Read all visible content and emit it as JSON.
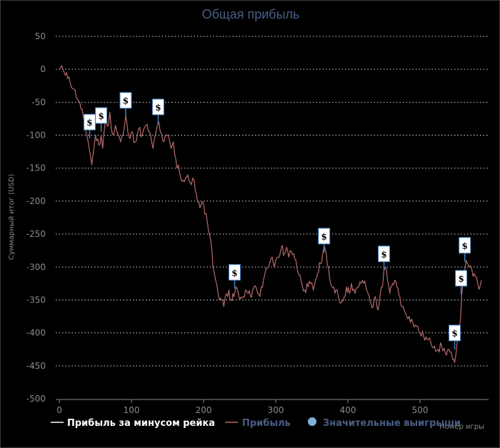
{
  "colors": {
    "background": "#000000",
    "grid": "#ffffff",
    "axis": "#8a8a8a",
    "title": "#4a5e86",
    "profit_line": "#b86a6a",
    "rake_line": "#ffffff",
    "win_marker": "#7fb0e0",
    "flag_border": "#3f7fc2"
  },
  "chart_data": {
    "type": "line",
    "title": "Общая прибыль",
    "xlabel": "Номер игры",
    "ylabel": "Суммарный итог (USD)",
    "xlim": [
      -5,
      595
    ],
    "ylim": [
      -500,
      50
    ],
    "x_ticks": [
      0,
      100,
      200,
      300,
      400,
      500
    ],
    "y_ticks": [
      50,
      0,
      -50,
      -100,
      -150,
      -200,
      -250,
      -300,
      -350,
      -400,
      -450,
      -500
    ],
    "grid": "horizontal dotted",
    "legend_position": "bottom",
    "legend": [
      {
        "label": "Прибыль за минусом рейка",
        "color": "#ffffff",
        "kind": "line"
      },
      {
        "label": "Прибыль",
        "color": "#b86a6a",
        "kind": "line"
      },
      {
        "label": "Значительные выигрыши",
        "color": "#7fb0e0",
        "kind": "marker"
      }
    ],
    "series": [
      {
        "name": "Прибыль",
        "anchors": [
          [
            0,
            0
          ],
          [
            5,
            0
          ],
          [
            10,
            -5
          ],
          [
            15,
            -20
          ],
          [
            20,
            -30
          ],
          [
            25,
            -45
          ],
          [
            30,
            -60
          ],
          [
            35,
            -80
          ],
          [
            40,
            -110
          ],
          [
            43,
            -130
          ],
          [
            45,
            -145
          ],
          [
            48,
            -120
          ],
          [
            50,
            -100
          ],
          [
            55,
            -115
          ],
          [
            58,
            -100
          ],
          [
            60,
            -120
          ],
          [
            62,
            -95
          ],
          [
            65,
            -75
          ],
          [
            68,
            -85
          ],
          [
            70,
            -65
          ],
          [
            72,
            -90
          ],
          [
            75,
            -100
          ],
          [
            78,
            -85
          ],
          [
            80,
            -95
          ],
          [
            85,
            -110
          ],
          [
            88,
            -100
          ],
          [
            90,
            -90
          ],
          [
            92,
            -70
          ],
          [
            95,
            -95
          ],
          [
            98,
            -105
          ],
          [
            100,
            -95
          ],
          [
            105,
            -110
          ],
          [
            110,
            -90
          ],
          [
            115,
            -100
          ],
          [
            120,
            -85
          ],
          [
            125,
            -95
          ],
          [
            128,
            -110
          ],
          [
            130,
            -120
          ],
          [
            133,
            -100
          ],
          [
            135,
            -90
          ],
          [
            138,
            -80
          ],
          [
            140,
            -95
          ],
          [
            145,
            -110
          ],
          [
            150,
            -100
          ],
          [
            155,
            -120
          ],
          [
            158,
            -110
          ],
          [
            160,
            -130
          ],
          [
            163,
            -150
          ],
          [
            165,
            -145
          ],
          [
            170,
            -170
          ],
          [
            175,
            -165
          ],
          [
            178,
            -160
          ],
          [
            180,
            -170
          ],
          [
            183,
            -175
          ],
          [
            185,
            -165
          ],
          [
            190,
            -190
          ],
          [
            195,
            -210
          ],
          [
            200,
            -205
          ],
          [
            205,
            -230
          ],
          [
            210,
            -260
          ],
          [
            213,
            -300
          ],
          [
            215,
            -310
          ],
          [
            218,
            -325
          ],
          [
            220,
            -340
          ],
          [
            225,
            -350
          ],
          [
            228,
            -360
          ],
          [
            230,
            -345
          ],
          [
            235,
            -335
          ],
          [
            238,
            -350
          ],
          [
            242,
            -345
          ],
          [
            245,
            -330
          ],
          [
            248,
            -340
          ],
          [
            250,
            -350
          ],
          [
            255,
            -345
          ],
          [
            258,
            -335
          ],
          [
            262,
            -340
          ],
          [
            265,
            -345
          ],
          [
            268,
            -335
          ],
          [
            270,
            -330
          ],
          [
            275,
            -340
          ],
          [
            278,
            -345
          ],
          [
            280,
            -330
          ],
          [
            283,
            -320
          ],
          [
            285,
            -310
          ],
          [
            290,
            -300
          ],
          [
            295,
            -285
          ],
          [
            298,
            -300
          ],
          [
            300,
            -290
          ],
          [
            305,
            -285
          ],
          [
            308,
            -270
          ],
          [
            312,
            -280
          ],
          [
            315,
            -270
          ],
          [
            318,
            -285
          ],
          [
            320,
            -275
          ],
          [
            325,
            -280
          ],
          [
            328,
            -290
          ],
          [
            330,
            -305
          ],
          [
            335,
            -320
          ],
          [
            340,
            -335
          ],
          [
            345,
            -330
          ],
          [
            348,
            -325
          ],
          [
            352,
            -335
          ],
          [
            355,
            -320
          ],
          [
            358,
            -310
          ],
          [
            362,
            -295
          ],
          [
            365,
            -280
          ],
          [
            368,
            -270
          ],
          [
            370,
            -280
          ],
          [
            373,
            -300
          ],
          [
            375,
            -320
          ],
          [
            378,
            -330
          ],
          [
            382,
            -340
          ],
          [
            385,
            -335
          ],
          [
            390,
            -355
          ],
          [
            395,
            -345
          ],
          [
            398,
            -330
          ],
          [
            402,
            -340
          ],
          [
            405,
            -325
          ],
          [
            410,
            -340
          ],
          [
            415,
            -330
          ],
          [
            420,
            -320
          ],
          [
            425,
            -330
          ],
          [
            428,
            -340
          ],
          [
            432,
            -355
          ],
          [
            435,
            -360
          ],
          [
            438,
            -345
          ],
          [
            442,
            -365
          ],
          [
            445,
            -340
          ],
          [
            448,
            -330
          ],
          [
            450,
            -305
          ],
          [
            452,
            -300
          ],
          [
            455,
            -320
          ],
          [
            458,
            -340
          ],
          [
            462,
            -325
          ],
          [
            465,
            -320
          ],
          [
            468,
            -330
          ],
          [
            472,
            -345
          ],
          [
            475,
            -360
          ],
          [
            480,
            -370
          ],
          [
            485,
            -375
          ],
          [
            490,
            -385
          ],
          [
            495,
            -390
          ],
          [
            500,
            -400
          ],
          [
            505,
            -405
          ],
          [
            510,
            -410
          ],
          [
            515,
            -415
          ],
          [
            520,
            -420
          ],
          [
            525,
            -425
          ],
          [
            530,
            -420
          ],
          [
            535,
            -430
          ],
          [
            540,
            -425
          ],
          [
            545,
            -440
          ],
          [
            548,
            -445
          ],
          [
            550,
            -430
          ],
          [
            553,
            -410
          ],
          [
            556,
            -380
          ],
          [
            558,
            -340
          ],
          [
            560,
            -320
          ],
          [
            562,
            -305
          ],
          [
            564,
            -290
          ],
          [
            566,
            -295
          ],
          [
            568,
            -300
          ],
          [
            570,
            -298
          ],
          [
            572,
            -305
          ],
          [
            575,
            -310
          ],
          [
            578,
            -315
          ],
          [
            580,
            -325
          ],
          [
            583,
            -330
          ],
          [
            585,
            -320
          ]
        ]
      }
    ],
    "significant_wins": [
      {
        "x": 42,
        "y": -105
      },
      {
        "x": 58,
        "y": -95
      },
      {
        "x": 92,
        "y": -72
      },
      {
        "x": 137,
        "y": -82
      },
      {
        "x": 243,
        "y": -333
      },
      {
        "x": 367,
        "y": -278
      },
      {
        "x": 450,
        "y": -305
      },
      {
        "x": 548,
        "y": -425
      },
      {
        "x": 557,
        "y": -342
      },
      {
        "x": 562,
        "y": -292
      }
    ],
    "marker_label": "$"
  }
}
